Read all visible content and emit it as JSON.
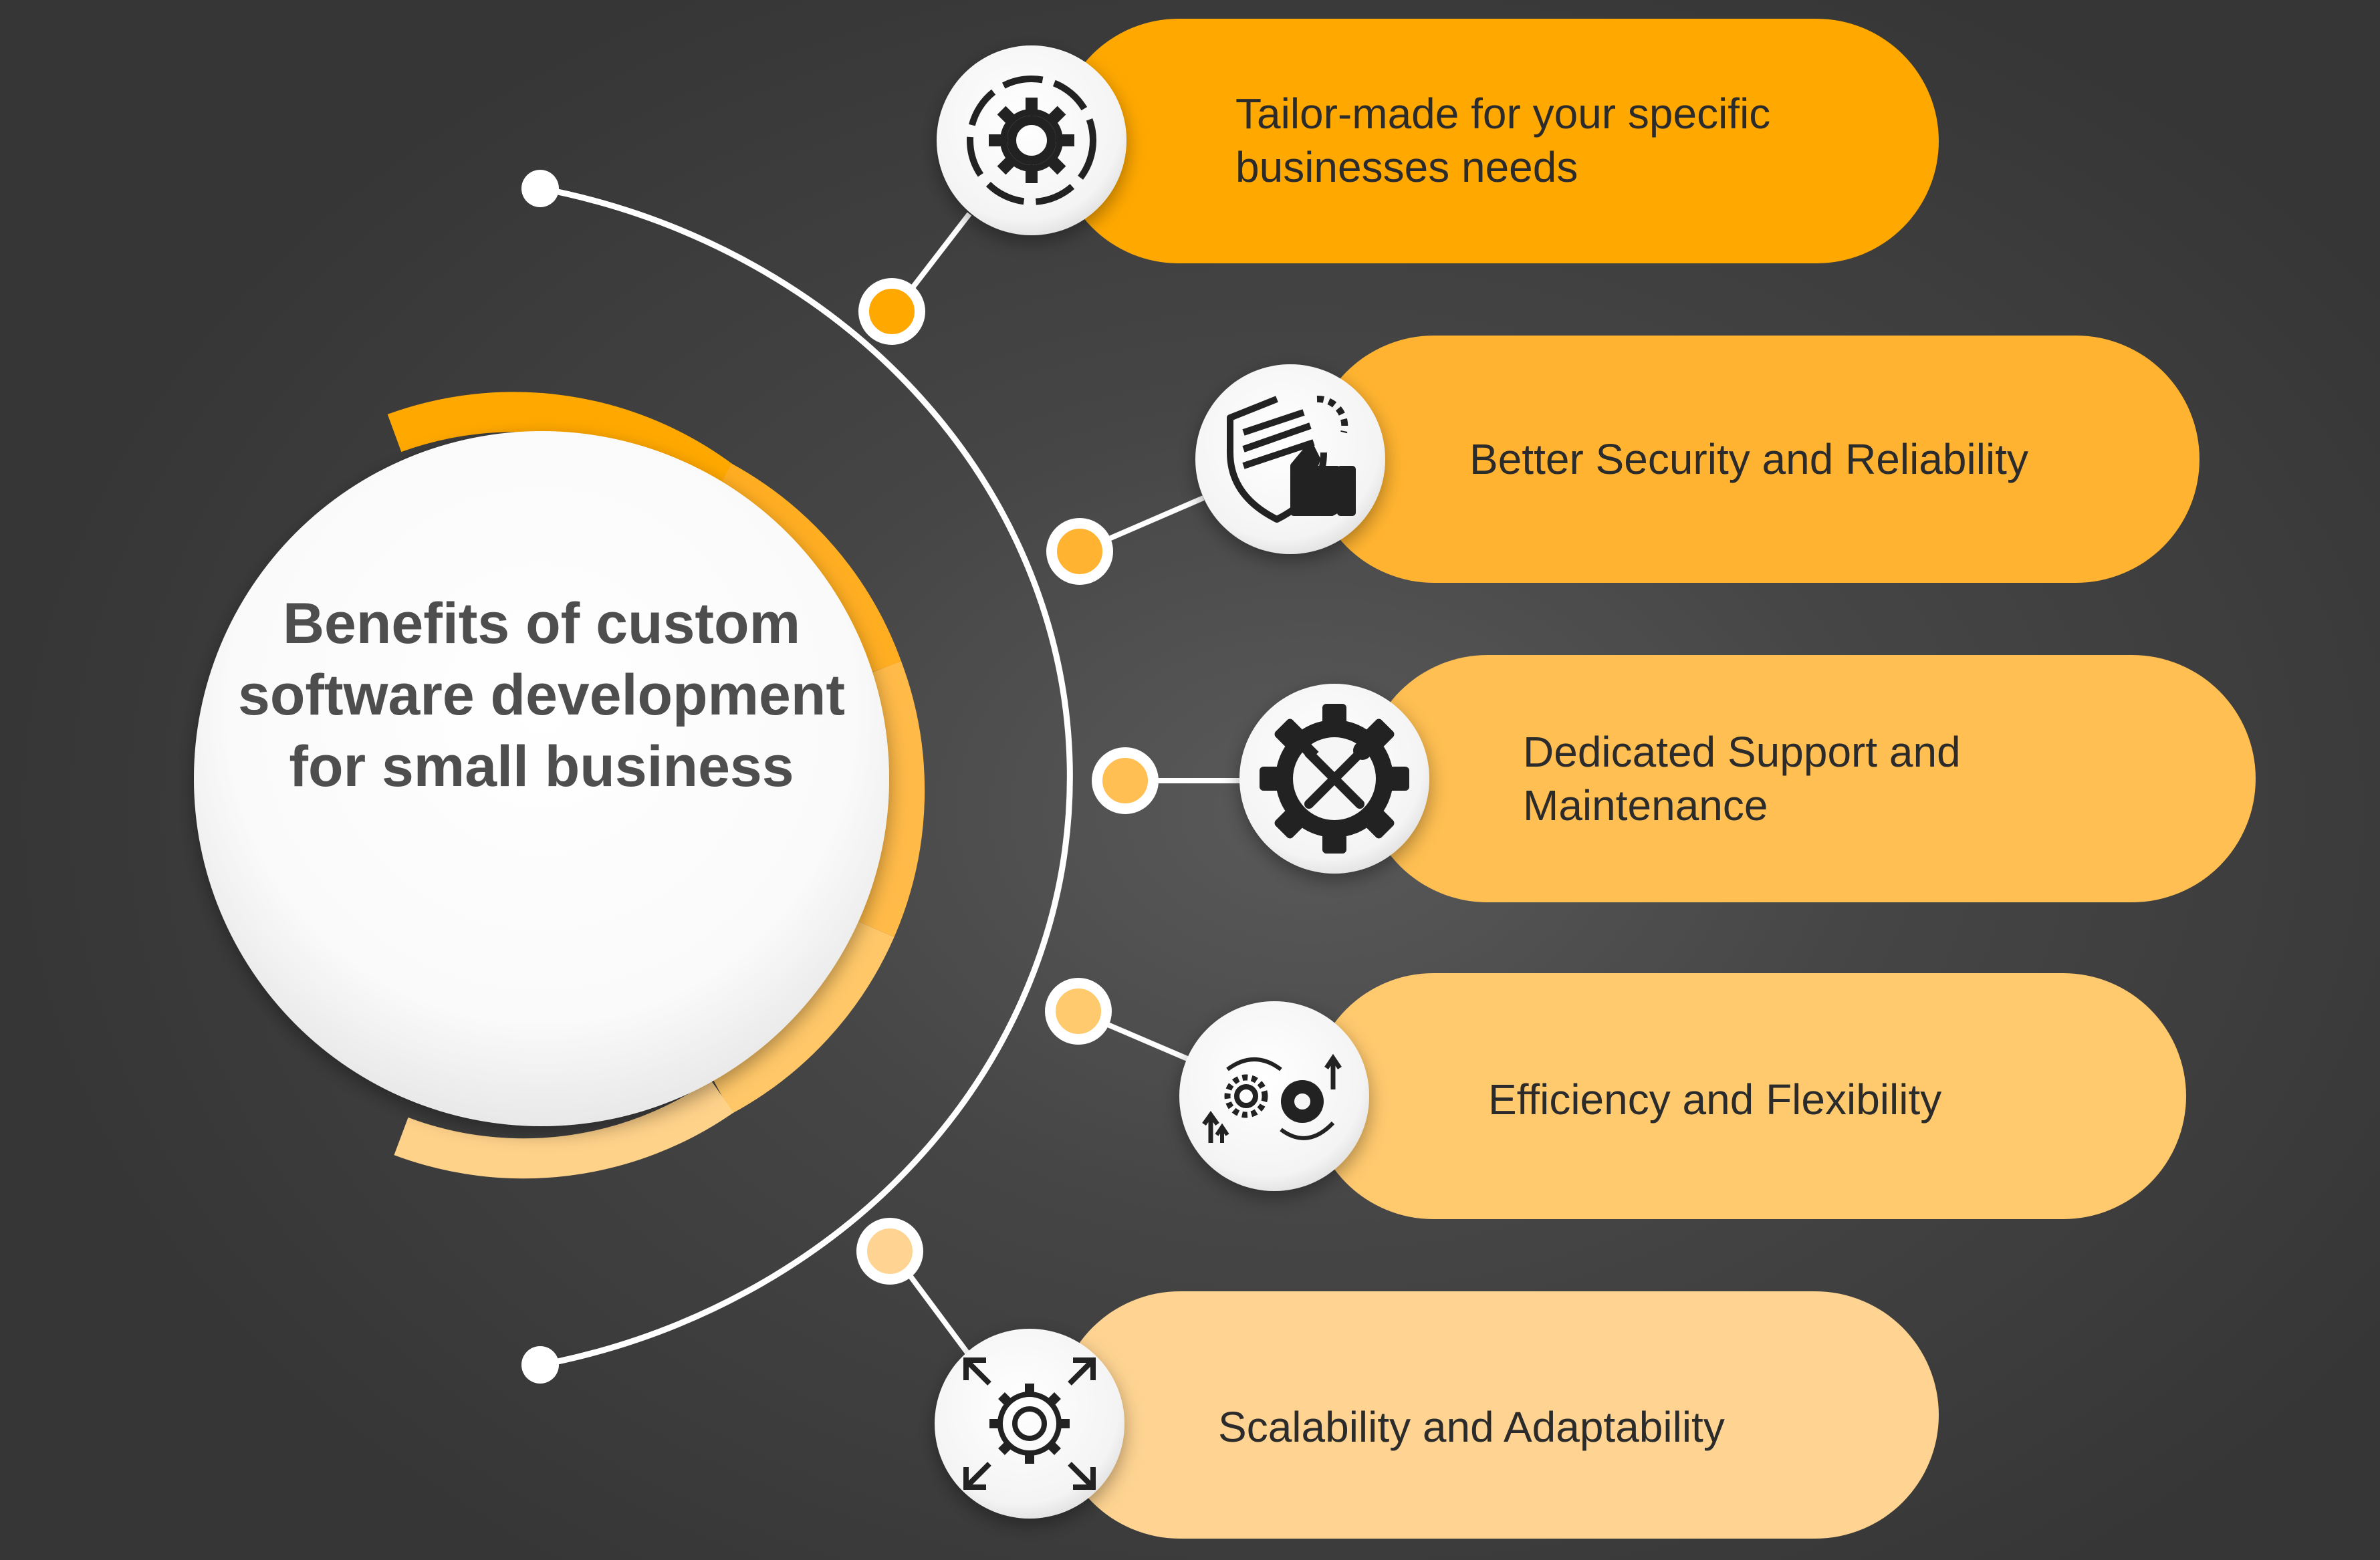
{
  "hub": {
    "title": "Benefits of custom software development for small business"
  },
  "benefits": [
    {
      "label": "Tailor-made for your specific businesses needs",
      "icon": "gear-target-icon",
      "color": "#FFA800"
    },
    {
      "label": "Better Security and Reliability",
      "icon": "shield-thumbs-up-icon",
      "color": "#FFB330"
    },
    {
      "label": "Dedicated Support and Maintenance",
      "icon": "gear-tools-icon",
      "color": "#FFBF52"
    },
    {
      "label": "Efficiency and Flexibility",
      "icon": "gears-arrows-icon",
      "color": "#FFC96E"
    },
    {
      "label": "Scalability and Adaptability",
      "icon": "gear-expand-icon",
      "color": "#FFD492"
    }
  ],
  "colors": {
    "accent": "#FFA800",
    "background": "#3F3F3F",
    "hub_text": "#4E4E4E",
    "pill_text": "#2B2B2B"
  }
}
